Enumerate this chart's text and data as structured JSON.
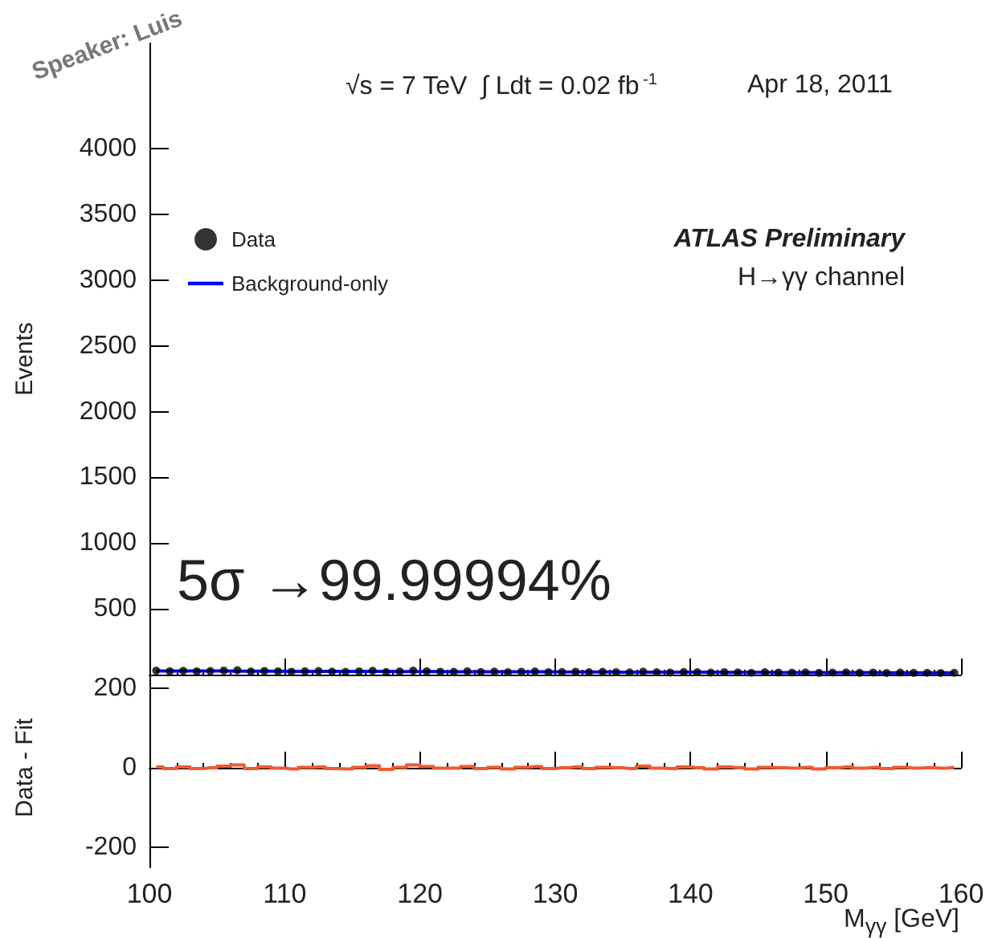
{
  "chart_data": [
    {
      "type": "scatter",
      "ylabel": "Events",
      "xlim": [
        100,
        160
      ],
      "xticks": [
        100,
        110,
        120,
        130,
        140,
        150,
        160
      ],
      "ylim": [
        0,
        4800
      ],
      "yticks": [
        {
          "value": 0,
          "label": null
        },
        500,
        1000,
        1500,
        2000,
        2500,
        3000,
        3500,
        4000
      ],
      "tick_labels": "y",
      "legend": "top left",
      "annotations": [
        "√s = 7 TeV  ∫ Ldt = 0.02 fb$^{-1}$",
        "Apr 18, 2011",
        "ATLAS Preliminary",
        "H→γγ channel",
        "5σ →99.99994%",
        "Speaker: Luis"
      ],
      "x": [
        100.5,
        101.5,
        102.5,
        103.5,
        104.5,
        105.5,
        106.5,
        107.5,
        108.5,
        109.5,
        110.5,
        111.5,
        112.5,
        113.5,
        114.5,
        115.5,
        116.5,
        117.5,
        118.5,
        119.5,
        120.5,
        121.5,
        122.5,
        123.5,
        124.5,
        125.5,
        126.5,
        127.5,
        128.5,
        129.5,
        130.5,
        131.5,
        132.5,
        133.5,
        134.5,
        135.5,
        136.5,
        137.5,
        138.5,
        139.5,
        140.5,
        141.5,
        142.5,
        143.5,
        144.5,
        145.5,
        146.5,
        147.5,
        148.5,
        149.5,
        150.5,
        151.5,
        152.5,
        153.5,
        154.5,
        155.5,
        156.5,
        157.5,
        158.5,
        159.5
      ],
      "series": [
        {
          "name": "Data",
          "marker": "circle",
          "color": "#000000",
          "values": [
            30,
            26,
            29,
            25,
            27,
            31,
            33,
            24,
            28,
            25,
            22,
            26,
            27,
            23,
            21,
            25,
            29,
            20,
            24,
            30,
            26,
            22,
            21,
            25,
            20,
            23,
            18,
            22,
            24,
            19,
            20,
            22,
            18,
            21,
            19,
            17,
            23,
            18,
            16,
            20,
            18,
            15,
            19,
            17,
            14,
            18,
            16,
            15,
            17,
            13,
            15,
            17,
            14,
            16,
            12,
            15,
            13,
            14,
            12,
            14
          ]
        },
        {
          "name": "Background-only",
          "type": "line",
          "marker": "none",
          "color": "#0000ff",
          "values": [
            28,
            28,
            27,
            27,
            27,
            27,
            26,
            26,
            26,
            26,
            25,
            25,
            25,
            25,
            24,
            24,
            24,
            24,
            23,
            23,
            23,
            23,
            22,
            22,
            22,
            22,
            21,
            21,
            21,
            21,
            20,
            20,
            20,
            20,
            19,
            19,
            19,
            19,
            18,
            18,
            18,
            18,
            17,
            17,
            17,
            17,
            16,
            16,
            16,
            16,
            15,
            15,
            15,
            15,
            14,
            14,
            14,
            14,
            13,
            13
          ]
        }
      ]
    },
    {
      "type": "step",
      "ylabel": "Data - Fit",
      "xlabel": "M$_{γγ}$ [GeV]",
      "xlim": [
        100,
        160
      ],
      "xticks": [
        100,
        110,
        120,
        130,
        140,
        150,
        160
      ],
      "ylim": [
        -250,
        250
      ],
      "yticks": [
        -200,
        0,
        200
      ],
      "x": [
        100.5,
        101.5,
        102.5,
        103.5,
        104.5,
        105.5,
        106.5,
        107.5,
        108.5,
        109.5,
        110.5,
        111.5,
        112.5,
        113.5,
        114.5,
        115.5,
        116.5,
        117.5,
        118.5,
        119.5,
        120.5,
        121.5,
        122.5,
        123.5,
        124.5,
        125.5,
        126.5,
        127.5,
        128.5,
        129.5,
        130.5,
        131.5,
        132.5,
        133.5,
        134.5,
        135.5,
        136.5,
        137.5,
        138.5,
        139.5,
        140.5,
        141.5,
        142.5,
        143.5,
        144.5,
        145.5,
        146.5,
        147.5,
        148.5,
        149.5,
        150.5,
        151.5,
        152.5,
        153.5,
        154.5,
        155.5,
        156.5,
        157.5,
        158.5,
        159.5
      ],
      "series": [
        {
          "color": "#ee5a30",
          "values": [
            2,
            -2,
            2,
            -2,
            0,
            4,
            7,
            -2,
            2,
            -1,
            -3,
            1,
            2,
            -2,
            -3,
            1,
            5,
            -4,
            1,
            7,
            3,
            -1,
            -1,
            3,
            -2,
            1,
            -3,
            1,
            3,
            -2,
            0,
            2,
            -2,
            1,
            0,
            -2,
            4,
            -1,
            -2,
            2,
            0,
            -3,
            2,
            0,
            -3,
            1,
            0,
            -1,
            1,
            -3,
            0,
            2,
            -1,
            1,
            -2,
            1,
            -1,
            0,
            -1,
            1
          ]
        }
      ]
    }
  ]
}
